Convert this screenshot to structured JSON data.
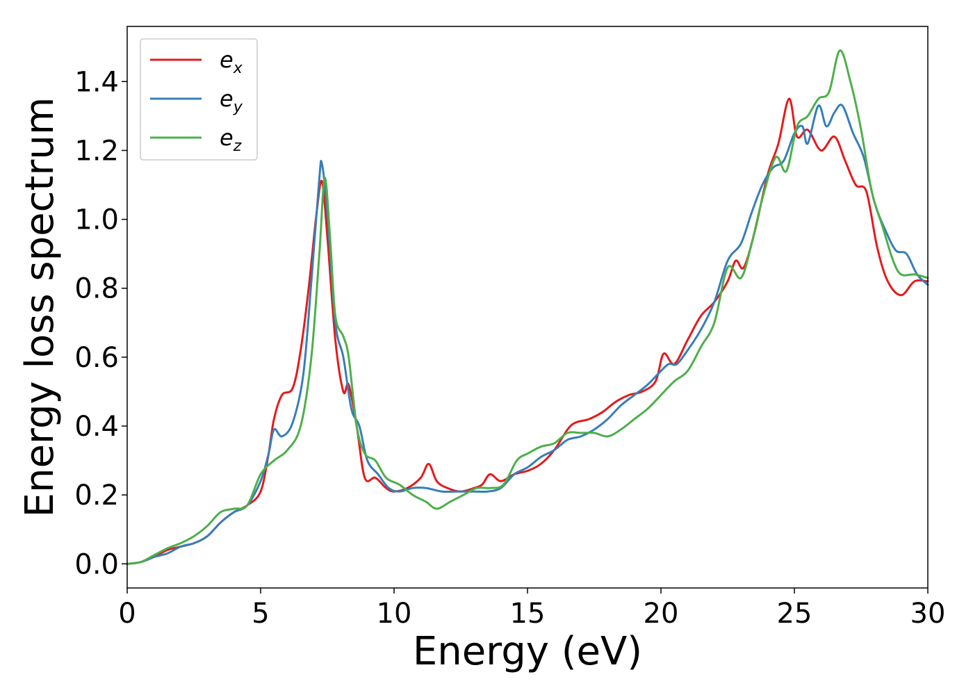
{
  "chart_data": {
    "type": "line",
    "xlabel": "Energy (eV)",
    "ylabel": "Energy loss spectrum",
    "xlim": [
      0,
      30
    ],
    "ylim": [
      -0.07,
      1.56
    ],
    "xticks": [
      0,
      5,
      10,
      15,
      20,
      25,
      30
    ],
    "yticks": [
      0.0,
      0.2,
      0.4,
      0.6,
      0.8,
      1.0,
      1.2,
      1.4
    ],
    "xtick_labels": [
      "0",
      "5",
      "10",
      "15",
      "20",
      "25",
      "30"
    ],
    "ytick_labels": [
      "0.0",
      "0.2",
      "0.4",
      "0.6",
      "0.8",
      "1.0",
      "1.2",
      "1.4"
    ],
    "grid": false,
    "legend_position": "top-left",
    "series": [
      {
        "name": "e",
        "subscript": "x",
        "color": "#e41a1c",
        "points": [
          [
            0,
            0
          ],
          [
            0.5,
            0.005
          ],
          [
            1,
            0.02
          ],
          [
            1.5,
            0.04
          ],
          [
            2,
            0.05
          ],
          [
            2.5,
            0.06
          ],
          [
            3,
            0.08
          ],
          [
            3.5,
            0.12
          ],
          [
            4,
            0.15
          ],
          [
            4.5,
            0.17
          ],
          [
            5,
            0.21
          ],
          [
            5.3,
            0.32
          ],
          [
            5.5,
            0.42
          ],
          [
            5.8,
            0.49
          ],
          [
            6.2,
            0.51
          ],
          [
            6.5,
            0.62
          ],
          [
            6.8,
            0.8
          ],
          [
            7.1,
            1.02
          ],
          [
            7.3,
            1.11
          ],
          [
            7.5,
            0.95
          ],
          [
            7.8,
            0.65
          ],
          [
            8.1,
            0.5
          ],
          [
            8.3,
            0.52
          ],
          [
            8.6,
            0.4
          ],
          [
            8.9,
            0.25
          ],
          [
            9.3,
            0.25
          ],
          [
            9.7,
            0.22
          ],
          [
            10,
            0.21
          ],
          [
            10.5,
            0.22
          ],
          [
            11,
            0.25
          ],
          [
            11.3,
            0.29
          ],
          [
            11.6,
            0.24
          ],
          [
            12,
            0.22
          ],
          [
            12.5,
            0.21
          ],
          [
            13,
            0.22
          ],
          [
            13.3,
            0.23
          ],
          [
            13.6,
            0.26
          ],
          [
            14,
            0.24
          ],
          [
            14.5,
            0.26
          ],
          [
            15,
            0.27
          ],
          [
            15.5,
            0.29
          ],
          [
            16,
            0.33
          ],
          [
            16.5,
            0.39
          ],
          [
            16.8,
            0.41
          ],
          [
            17.3,
            0.42
          ],
          [
            17.8,
            0.44
          ],
          [
            18.3,
            0.47
          ],
          [
            18.8,
            0.49
          ],
          [
            19.3,
            0.5
          ],
          [
            19.8,
            0.53
          ],
          [
            20.1,
            0.61
          ],
          [
            20.5,
            0.58
          ],
          [
            21,
            0.65
          ],
          [
            21.5,
            0.72
          ],
          [
            22,
            0.76
          ],
          [
            22.5,
            0.82
          ],
          [
            22.8,
            0.88
          ],
          [
            23.1,
            0.86
          ],
          [
            23.5,
            0.96
          ],
          [
            24,
            1.13
          ],
          [
            24.4,
            1.22
          ],
          [
            24.8,
            1.35
          ],
          [
            25.1,
            1.24
          ],
          [
            25.5,
            1.26
          ],
          [
            26,
            1.2
          ],
          [
            26.5,
            1.24
          ],
          [
            26.9,
            1.17
          ],
          [
            27.3,
            1.1
          ],
          [
            27.7,
            1.08
          ],
          [
            28.1,
            0.92
          ],
          [
            28.5,
            0.82
          ],
          [
            29,
            0.78
          ],
          [
            29.5,
            0.82
          ],
          [
            30,
            0.82
          ]
        ]
      },
      {
        "name": "e",
        "subscript": "y",
        "color": "#377eb8",
        "points": [
          [
            0,
            0
          ],
          [
            0.5,
            0.005
          ],
          [
            1,
            0.02
          ],
          [
            1.5,
            0.03
          ],
          [
            2,
            0.05
          ],
          [
            2.5,
            0.06
          ],
          [
            3,
            0.08
          ],
          [
            3.5,
            0.12
          ],
          [
            4,
            0.15
          ],
          [
            4.5,
            0.17
          ],
          [
            5,
            0.24
          ],
          [
            5.3,
            0.32
          ],
          [
            5.5,
            0.39
          ],
          [
            5.8,
            0.37
          ],
          [
            6.2,
            0.41
          ],
          [
            6.6,
            0.55
          ],
          [
            6.9,
            0.82
          ],
          [
            7.2,
            1.12
          ],
          [
            7.3,
            1.16
          ],
          [
            7.5,
            1.02
          ],
          [
            7.8,
            0.7
          ],
          [
            8.1,
            0.6
          ],
          [
            8.4,
            0.45
          ],
          [
            8.7,
            0.4
          ],
          [
            9,
            0.3
          ],
          [
            9.4,
            0.26
          ],
          [
            9.8,
            0.22
          ],
          [
            10.2,
            0.21
          ],
          [
            10.7,
            0.22
          ],
          [
            11.2,
            0.22
          ],
          [
            11.8,
            0.21
          ],
          [
            12.4,
            0.21
          ],
          [
            13,
            0.21
          ],
          [
            13.5,
            0.21
          ],
          [
            14,
            0.22
          ],
          [
            14.5,
            0.26
          ],
          [
            15,
            0.28
          ],
          [
            15.5,
            0.31
          ],
          [
            16,
            0.33
          ],
          [
            16.5,
            0.36
          ],
          [
            17,
            0.37
          ],
          [
            17.5,
            0.39
          ],
          [
            18,
            0.42
          ],
          [
            18.5,
            0.46
          ],
          [
            19,
            0.49
          ],
          [
            19.5,
            0.52
          ],
          [
            20,
            0.56
          ],
          [
            20.3,
            0.58
          ],
          [
            20.6,
            0.58
          ],
          [
            21,
            0.62
          ],
          [
            21.5,
            0.68
          ],
          [
            22,
            0.76
          ],
          [
            22.5,
            0.88
          ],
          [
            23,
            0.93
          ],
          [
            23.4,
            1.02
          ],
          [
            23.8,
            1.1
          ],
          [
            24.2,
            1.15
          ],
          [
            24.6,
            1.17
          ],
          [
            25,
            1.25
          ],
          [
            25.3,
            1.27
          ],
          [
            25.5,
            1.22
          ],
          [
            25.9,
            1.33
          ],
          [
            26.2,
            1.27
          ],
          [
            26.5,
            1.31
          ],
          [
            26.8,
            1.33
          ],
          [
            27.2,
            1.25
          ],
          [
            27.6,
            1.18
          ],
          [
            28,
            1.05
          ],
          [
            28.4,
            0.97
          ],
          [
            28.8,
            0.91
          ],
          [
            29.2,
            0.9
          ],
          [
            29.6,
            0.84
          ],
          [
            30,
            0.81
          ]
        ]
      },
      {
        "name": "e",
        "subscript": "z",
        "color": "#4daf4a",
        "points": [
          [
            0,
            0
          ],
          [
            0.5,
            0.005
          ],
          [
            1,
            0.025
          ],
          [
            1.5,
            0.045
          ],
          [
            2,
            0.06
          ],
          [
            2.5,
            0.08
          ],
          [
            3,
            0.11
          ],
          [
            3.5,
            0.15
          ],
          [
            4,
            0.16
          ],
          [
            4.5,
            0.17
          ],
          [
            5,
            0.26
          ],
          [
            5.5,
            0.3
          ],
          [
            6,
            0.33
          ],
          [
            6.5,
            0.4
          ],
          [
            6.9,
            0.6
          ],
          [
            7.2,
            0.9
          ],
          [
            7.4,
            1.12
          ],
          [
            7.6,
            0.95
          ],
          [
            7.8,
            0.72
          ],
          [
            8.1,
            0.66
          ],
          [
            8.3,
            0.6
          ],
          [
            8.6,
            0.4
          ],
          [
            8.9,
            0.32
          ],
          [
            9.3,
            0.3
          ],
          [
            9.7,
            0.25
          ],
          [
            10.2,
            0.23
          ],
          [
            10.7,
            0.2
          ],
          [
            11.2,
            0.18
          ],
          [
            11.6,
            0.16
          ],
          [
            12.1,
            0.18
          ],
          [
            12.6,
            0.2
          ],
          [
            13.1,
            0.22
          ],
          [
            13.6,
            0.22
          ],
          [
            14.1,
            0.23
          ],
          [
            14.6,
            0.3
          ],
          [
            15,
            0.32
          ],
          [
            15.5,
            0.34
          ],
          [
            16,
            0.35
          ],
          [
            16.5,
            0.38
          ],
          [
            17,
            0.38
          ],
          [
            17.5,
            0.38
          ],
          [
            18,
            0.37
          ],
          [
            18.5,
            0.39
          ],
          [
            19,
            0.42
          ],
          [
            19.5,
            0.45
          ],
          [
            20,
            0.49
          ],
          [
            20.5,
            0.53
          ],
          [
            21,
            0.56
          ],
          [
            21.5,
            0.63
          ],
          [
            22,
            0.7
          ],
          [
            22.5,
            0.86
          ],
          [
            23,
            0.83
          ],
          [
            23.4,
            0.93
          ],
          [
            23.8,
            1.06
          ],
          [
            24.3,
            1.18
          ],
          [
            24.7,
            1.14
          ],
          [
            25.1,
            1.27
          ],
          [
            25.5,
            1.3
          ],
          [
            25.9,
            1.35
          ],
          [
            26.3,
            1.37
          ],
          [
            26.7,
            1.49
          ],
          [
            27.1,
            1.4
          ],
          [
            27.5,
            1.26
          ],
          [
            27.9,
            1.08
          ],
          [
            28.3,
            0.98
          ],
          [
            28.7,
            0.88
          ],
          [
            29,
            0.84
          ],
          [
            29.5,
            0.84
          ],
          [
            30,
            0.83
          ]
        ]
      }
    ]
  }
}
